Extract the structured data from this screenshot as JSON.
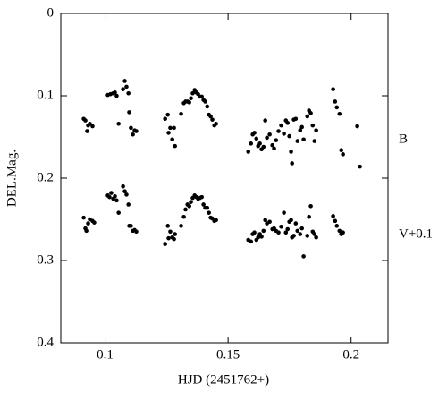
{
  "chart_data": {
    "type": "scatter",
    "x_label": "HJD (2451762+)",
    "y_label": "DEL.Mag.",
    "xlim": [
      0.082,
      0.215
    ],
    "ylim": [
      0,
      0.4
    ],
    "y_inverted": true,
    "xticks": [
      0.1,
      0.15,
      0.2
    ],
    "yticks": [
      0,
      0.1,
      0.2,
      0.3,
      0.4
    ],
    "series": [
      {
        "name": "B",
        "color": "#000000",
        "x": [
          0.0913,
          0.092,
          0.0927,
          0.0931,
          0.0938,
          0.0949,
          0.1011,
          0.1022,
          0.1033,
          0.104,
          0.1047,
          0.1055,
          0.1073,
          0.108,
          0.1087,
          0.1095,
          0.1098,
          0.1105,
          0.1113,
          0.112,
          0.1127,
          0.1244,
          0.1255,
          0.1258,
          0.1265,
          0.1273,
          0.128,
          0.1284,
          0.1309,
          0.132,
          0.1327,
          0.1335,
          0.1342,
          0.1349,
          0.1356,
          0.1364,
          0.1371,
          0.1378,
          0.1385,
          0.1393,
          0.14,
          0.1407,
          0.1415,
          0.1422,
          0.1429,
          0.1436,
          0.1444,
          0.1451,
          0.1582,
          0.1593,
          0.16,
          0.1607,
          0.1615,
          0.1622,
          0.1629,
          0.1636,
          0.1644,
          0.1651,
          0.1658,
          0.1669,
          0.168,
          0.1687,
          0.1695,
          0.1705,
          0.1716,
          0.1727,
          0.1735,
          0.1742,
          0.1749,
          0.1756,
          0.176,
          0.1767,
          0.1775,
          0.1782,
          0.1793,
          0.18,
          0.1807,
          0.1822,
          0.1829,
          0.1836,
          0.1844,
          0.1851,
          0.1858,
          0.1927,
          0.1935,
          0.1942,
          0.1953,
          0.196,
          0.1967,
          0.2025,
          0.2036
        ],
        "values": [
          0.128,
          0.13,
          0.143,
          0.136,
          0.134,
          0.137,
          0.099,
          0.098,
          0.097,
          0.096,
          0.1,
          0.134,
          0.092,
          0.082,
          0.089,
          0.097,
          0.12,
          0.139,
          0.147,
          0.142,
          0.143,
          0.128,
          0.123,
          0.145,
          0.139,
          0.153,
          0.139,
          0.161,
          0.122,
          0.109,
          0.107,
          0.107,
          0.108,
          0.103,
          0.097,
          0.093,
          0.096,
          0.098,
          0.101,
          0.101,
          0.105,
          0.107,
          0.113,
          0.123,
          0.125,
          0.129,
          0.136,
          0.134,
          0.168,
          0.158,
          0.147,
          0.145,
          0.152,
          0.161,
          0.158,
          0.165,
          0.162,
          0.13,
          0.151,
          0.147,
          0.16,
          0.164,
          0.154,
          0.143,
          0.136,
          0.146,
          0.13,
          0.133,
          0.149,
          0.168,
          0.182,
          0.129,
          0.128,
          0.155,
          0.142,
          0.138,
          0.153,
          0.125,
          0.118,
          0.121,
          0.136,
          0.155,
          0.142,
          0.092,
          0.107,
          0.114,
          0.122,
          0.166,
          0.171,
          0.137,
          0.186
        ]
      },
      {
        "name": "V+0.1",
        "color": "#000000",
        "x": [
          0.0913,
          0.092,
          0.0924,
          0.0931,
          0.0938,
          0.0949,
          0.0956,
          0.1011,
          0.1018,
          0.1025,
          0.1033,
          0.104,
          0.1047,
          0.1055,
          0.1073,
          0.108,
          0.1087,
          0.1095,
          0.1098,
          0.1105,
          0.1113,
          0.112,
          0.1127,
          0.1244,
          0.1255,
          0.1258,
          0.1265,
          0.1273,
          0.128,
          0.1284,
          0.1309,
          0.132,
          0.1327,
          0.1335,
          0.1342,
          0.1349,
          0.1356,
          0.1364,
          0.1371,
          0.1378,
          0.1385,
          0.1393,
          0.14,
          0.1407,
          0.1415,
          0.1422,
          0.1429,
          0.1436,
          0.1444,
          0.1451,
          0.1582,
          0.1593,
          0.16,
          0.1607,
          0.1615,
          0.1622,
          0.1629,
          0.1636,
          0.1644,
          0.1651,
          0.1658,
          0.1669,
          0.168,
          0.1687,
          0.1695,
          0.1705,
          0.1716,
          0.1727,
          0.1735,
          0.1742,
          0.1749,
          0.1756,
          0.176,
          0.1767,
          0.1775,
          0.1782,
          0.1793,
          0.18,
          0.1807,
          0.1822,
          0.1829,
          0.1836,
          0.1844,
          0.1851,
          0.1858,
          0.1927,
          0.1935,
          0.1942,
          0.1953,
          0.196,
          0.1967
        ],
        "values": [
          0.248,
          0.261,
          0.264,
          0.255,
          0.25,
          0.252,
          0.254,
          0.221,
          0.223,
          0.218,
          0.225,
          0.222,
          0.227,
          0.242,
          0.21,
          0.216,
          0.22,
          0.232,
          0.258,
          0.258,
          0.264,
          0.263,
          0.265,
          0.28,
          0.258,
          0.273,
          0.265,
          0.272,
          0.274,
          0.268,
          0.258,
          0.247,
          0.238,
          0.232,
          0.234,
          0.229,
          0.224,
          0.221,
          0.223,
          0.225,
          0.224,
          0.223,
          0.232,
          0.236,
          0.236,
          0.242,
          0.248,
          0.249,
          0.252,
          0.251,
          0.275,
          0.277,
          0.268,
          0.266,
          0.275,
          0.272,
          0.268,
          0.271,
          0.264,
          0.251,
          0.255,
          0.253,
          0.262,
          0.261,
          0.264,
          0.266,
          0.259,
          0.242,
          0.266,
          0.262,
          0.253,
          0.251,
          0.272,
          0.27,
          0.255,
          0.264,
          0.268,
          0.261,
          0.295,
          0.27,
          0.247,
          0.234,
          0.265,
          0.268,
          0.272,
          0.246,
          0.252,
          0.258,
          0.264,
          0.268,
          0.266
        ]
      }
    ]
  }
}
